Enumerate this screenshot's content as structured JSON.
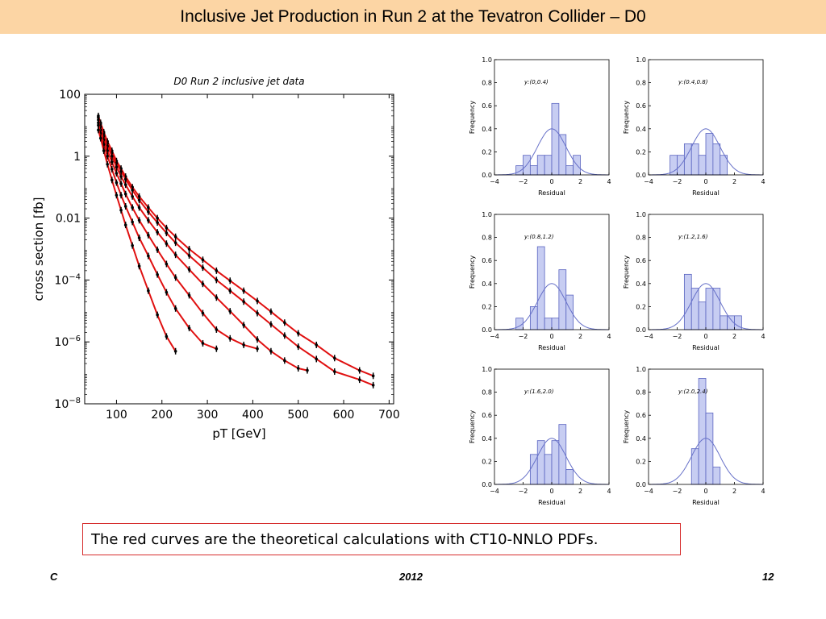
{
  "slide": {
    "title": "Inclusive Jet Production in Run 2 at the Tevatron Collider – D0",
    "caption": "The red curves are the theoretical calculations with CT10-NNLO PDFs.",
    "footer_left": "C",
    "footer_center": "2012",
    "footer_right": "12"
  },
  "colors": {
    "title_bg": "#fcd5a4",
    "theory_curve": "#e01010",
    "data_points": "#000000",
    "hist_fill": "#c7cdf2",
    "hist_edge": "#5a64c0",
    "gauss_curve": "#6670c8",
    "caption_border": "#d62c2c"
  },
  "chart_data": [
    {
      "type": "line",
      "title": "D0 Run 2 inclusive jet data",
      "xlabel": "pT [GeV]",
      "ylabel": "cross section [fb]",
      "xlim": [
        30,
        710
      ],
      "ylim": [
        1e-08,
        100
      ],
      "yscale": "log",
      "xticks": [
        "100",
        "200",
        "300",
        "400",
        "500",
        "600",
        "700"
      ],
      "yticks": [
        {
          "value": 100,
          "base": "100",
          "exp": ""
        },
        {
          "value": 1,
          "base": "1",
          "exp": ""
        },
        {
          "value": 0.01,
          "base": "0.01",
          "exp": ""
        },
        {
          "value": 0.0001,
          "base": "10",
          "exp": "−4"
        },
        {
          "value": 1e-06,
          "base": "10",
          "exp": "−6"
        },
        {
          "value": 1e-08,
          "base": "10",
          "exp": "−8"
        }
      ],
      "series": [
        {
          "x": [
            60,
            65,
            72,
            80,
            90,
            100,
            110,
            120,
            135,
            150,
            170,
            190,
            210,
            230,
            260,
            290,
            320,
            350,
            380,
            410,
            440,
            470,
            500,
            540,
            580,
            635,
            665
          ],
          "y": [
            20,
            12,
            6,
            3,
            1.5,
            0.7,
            0.4,
            0.22,
            0.1,
            0.05,
            0.022,
            0.01,
            0.0048,
            0.0025,
            0.001,
            0.00045,
            0.0002,
            9.5e-05,
            4.5e-05,
            2.1e-05,
            9.5e-06,
            4.2e-06,
            1.9e-06,
            8e-07,
            3e-07,
            1.2e-07,
            8e-08
          ]
        },
        {
          "x": [
            60,
            65,
            72,
            80,
            90,
            100,
            110,
            120,
            135,
            150,
            170,
            190,
            210,
            230,
            260,
            290,
            320,
            350,
            380,
            410,
            440,
            470,
            500,
            540,
            580,
            635,
            665
          ],
          "y": [
            18,
            11,
            5.5,
            2.6,
            1.3,
            0.6,
            0.32,
            0.18,
            0.08,
            0.038,
            0.016,
            0.0072,
            0.0033,
            0.0016,
            0.00062,
            0.00025,
            0.0001,
            4.5e-05,
            2e-05,
            8.5e-06,
            3.7e-06,
            1.6e-06,
            7e-07,
            2.8e-07,
            1.1e-07,
            6e-08,
            4e-08
          ]
        },
        {
          "x": [
            60,
            65,
            72,
            80,
            90,
            100,
            110,
            120,
            135,
            150,
            170,
            190,
            210,
            230,
            260,
            290,
            320,
            350,
            380,
            410,
            440,
            470,
            500,
            520
          ],
          "y": [
            15,
            9,
            4.5,
            2.1,
            1,
            0.45,
            0.22,
            0.12,
            0.05,
            0.022,
            0.0085,
            0.0035,
            0.0015,
            0.00065,
            0.00022,
            7.5e-05,
            2.7e-05,
            9.8e-06,
            3.5e-06,
            1.2e-06,
            5e-07,
            2.5e-07,
            1.4e-07,
            1.2e-07
          ]
        },
        {
          "x": [
            60,
            65,
            72,
            80,
            90,
            100,
            110,
            120,
            135,
            150,
            170,
            190,
            210,
            230,
            260,
            290,
            320,
            350,
            380,
            410
          ],
          "y": [
            12,
            7,
            3.4,
            1.5,
            0.65,
            0.28,
            0.13,
            0.06,
            0.022,
            0.0085,
            0.0028,
            0.00095,
            0.00033,
            0.00012,
            3.2e-05,
            8.5e-06,
            2.5e-06,
            1.3e-06,
            8e-07,
            6e-07
          ]
        },
        {
          "x": [
            60,
            65,
            72,
            80,
            90,
            100,
            110,
            120,
            135,
            150,
            170,
            190,
            210,
            230,
            260,
            290,
            320
          ],
          "y": [
            10,
            5.5,
            2.4,
            1,
            0.38,
            0.14,
            0.055,
            0.024,
            0.0075,
            0.0023,
            0.0006,
            0.00015,
            4e-05,
            1.2e-05,
            2.8e-06,
            9e-07,
            6e-07
          ]
        },
        {
          "x": [
            60,
            65,
            72,
            80,
            90,
            100,
            110,
            120,
            135,
            150,
            170,
            190,
            210,
            230
          ],
          "y": [
            7,
            3.8,
            1.5,
            0.55,
            0.17,
            0.055,
            0.018,
            0.006,
            0.0013,
            0.00028,
            4.5e-05,
            7.5e-06,
            1.5e-06,
            5e-07
          ]
        }
      ]
    },
    {
      "type": "bar",
      "title": "y:(0,0.4)",
      "xlabel": "Residual",
      "ylabel": "Frequency",
      "xlim": [
        -4,
        4
      ],
      "ylim": [
        0,
        1.0
      ],
      "bin_width": 0.5,
      "bin_starts": [
        -2.5,
        -2.0,
        -1.5,
        -1.0,
        -0.5,
        0.0,
        0.5,
        1.0,
        1.5
      ],
      "values": [
        0.08,
        0.17,
        0.08,
        0.17,
        0.17,
        0.62,
        0.35,
        0.08,
        0.17
      ]
    },
    {
      "type": "bar",
      "title": "y:(0.4,0.8)",
      "xlabel": "Residual",
      "ylabel": "Frequency",
      "xlim": [
        -4,
        4
      ],
      "ylim": [
        0,
        1.0
      ],
      "bin_width": 0.5,
      "bin_starts": [
        -2.5,
        -2.0,
        -1.5,
        -1.0,
        -0.5,
        0.0,
        0.5,
        1.0,
        1.5
      ],
      "values": [
        0.17,
        0.17,
        0.27,
        0.27,
        0.17,
        0.36,
        0.27,
        0.17,
        0.0
      ]
    },
    {
      "type": "bar",
      "title": "y:(0.8,1.2)",
      "xlabel": "Residual",
      "ylabel": "Frequency",
      "xlim": [
        -4,
        4
      ],
      "ylim": [
        0,
        1.0
      ],
      "bin_width": 0.5,
      "bin_starts": [
        -2.5,
        -2.0,
        -1.5,
        -1.0,
        -0.5,
        0.0,
        0.5,
        1.0
      ],
      "values": [
        0.1,
        0.0,
        0.2,
        0.72,
        0.1,
        0.1,
        0.52,
        0.3
      ]
    },
    {
      "type": "bar",
      "title": "y:(1.2,1.6)",
      "xlabel": "Residual",
      "ylabel": "Frequency",
      "xlim": [
        -4,
        4
      ],
      "ylim": [
        0,
        1.0
      ],
      "bin_width": 0.5,
      "bin_starts": [
        -1.5,
        -1.0,
        -0.5,
        0.0,
        0.5,
        1.0,
        1.5,
        2.0
      ],
      "values": [
        0.48,
        0.36,
        0.24,
        0.36,
        0.36,
        0.12,
        0.12,
        0.12
      ]
    },
    {
      "type": "bar",
      "title": "y:(1.6,2.0)",
      "xlabel": "Residual",
      "ylabel": "Frequency",
      "xlim": [
        -4,
        4
      ],
      "ylim": [
        0,
        1.0
      ],
      "bin_width": 0.5,
      "bin_starts": [
        -1.5,
        -1.0,
        -0.5,
        0.0,
        0.5,
        1.0
      ],
      "values": [
        0.26,
        0.38,
        0.26,
        0.38,
        0.52,
        0.13
      ]
    },
    {
      "type": "bar",
      "title": "y:(2.0,2.4)",
      "xlabel": "Residual",
      "ylabel": "Frequency",
      "xlim": [
        -4,
        4
      ],
      "ylim": [
        0,
        1.0
      ],
      "bin_width": 0.5,
      "bin_starts": [
        -1.0,
        -0.5,
        0.0,
        0.5
      ],
      "values": [
        0.31,
        0.92,
        0.62,
        0.15
      ]
    }
  ]
}
